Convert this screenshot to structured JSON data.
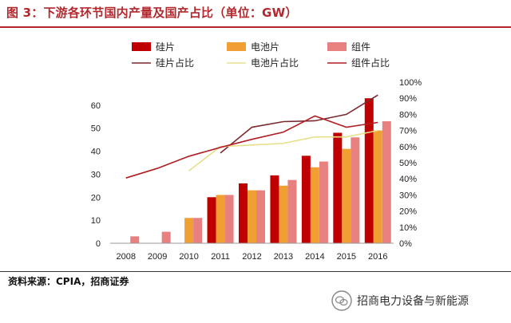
{
  "figure": {
    "title": "图 3：下游各环节国内产量及国产占比（单位：GW）",
    "source": "资料来源：CPIA，招商证券",
    "watermark": "招商电力设备与新能源"
  },
  "colors": {
    "title": "#b3282d",
    "silicon_bar": "#c00000",
    "cell_bar": "#f0a033",
    "module_bar": "#e88080",
    "silicon_line": "#7a2a2e",
    "cell_line": "#e6e08a",
    "module_line": "#b01e23"
  },
  "chart_data": {
    "type": "bar",
    "title": "",
    "xlabel": "",
    "ylabel": "",
    "categories": [
      "2008",
      "2009",
      "2010",
      "2011",
      "2012",
      "2013",
      "2014",
      "2015",
      "2016"
    ],
    "ylim": [
      0,
      70
    ],
    "yticks": [
      0,
      10,
      20,
      30,
      40,
      50,
      60
    ],
    "y2lim": [
      0,
      100
    ],
    "y2ticks": [
      "0%",
      "10%",
      "20%",
      "30%",
      "40%",
      "50%",
      "60%",
      "70%",
      "80%",
      "90%",
      "100%"
    ],
    "legend_position": "top",
    "grid": false,
    "series": [
      {
        "name": "硅片",
        "kind": "bar",
        "axis": "left",
        "color": "#c00000",
        "values": [
          null,
          null,
          null,
          20,
          26,
          29.5,
          38,
          48,
          63
        ]
      },
      {
        "name": "电池片",
        "kind": "bar",
        "axis": "left",
        "color": "#f0a033",
        "values": [
          null,
          null,
          11,
          21,
          23,
          25,
          33,
          41,
          49
        ]
      },
      {
        "name": "组件",
        "kind": "bar",
        "axis": "left",
        "color": "#e88080",
        "values": [
          3,
          5,
          11,
          21,
          23,
          27.5,
          35.5,
          46,
          53
        ]
      },
      {
        "name": "硅片占比",
        "kind": "line",
        "axis": "right",
        "color": "#7a2a2e",
        "values": [
          null,
          null,
          null,
          56,
          72,
          75.5,
          76,
          80,
          92
        ]
      },
      {
        "name": "电池片占比",
        "kind": "line",
        "axis": "right",
        "color": "#e6e08a",
        "values": [
          null,
          null,
          45,
          60,
          61,
          62,
          66,
          66,
          70
        ]
      },
      {
        "name": "组件占比",
        "kind": "line",
        "axis": "right",
        "color": "#b01e23",
        "values": [
          40.5,
          46.5,
          54,
          59.5,
          64.5,
          69,
          79,
          72,
          75
        ]
      }
    ]
  }
}
